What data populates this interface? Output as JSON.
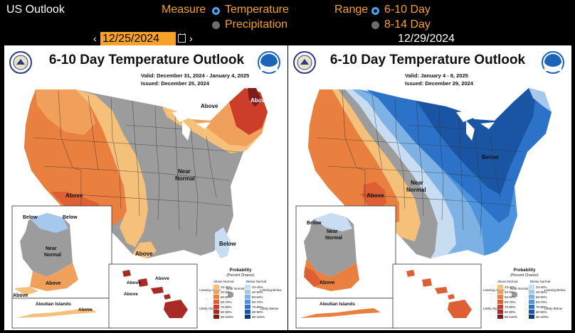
{
  "header": {
    "title": "US Outlook",
    "measure_label": "Measure",
    "range_label": "Range",
    "measure_options": [
      "Temperature",
      "Precipitation"
    ],
    "range_options": [
      "6-10 Day",
      "8-14 Day"
    ],
    "selected_measure": "Temperature",
    "selected_range": "6-10 Day",
    "date_input": "12/25/2024",
    "date_right": "12/29/2024",
    "accent_color": "#f7a12a",
    "radio_selected_color": "#4aa3f0"
  },
  "left_map": {
    "title": "6-10 Day Temperature Outlook",
    "valid": "Valid:  December 31, 2024 - January 4, 2025",
    "issued": "Issued:  December 25, 2024",
    "labels": [
      "Above",
      "Above",
      "Above",
      "Near",
      "Normal",
      "Above",
      "Below",
      "Below",
      "Below",
      "Near",
      "Normal",
      "Above",
      "Above",
      "Aleutian Islands",
      "Above",
      "Above",
      "Above",
      "Above"
    ]
  },
  "right_map": {
    "title": "6-10 Day Temperature Outlook",
    "valid": "Valid:  January 4 - 8, 2025",
    "issued": "Issued:  December 29, 2024",
    "labels": [
      "Below",
      "Near",
      "Normal",
      "Above",
      "Below",
      "Near",
      "Normal",
      "Above",
      "Aleutian Islands"
    ]
  },
  "legend": {
    "title": "Probability",
    "subtitle": "(Percent Chance)",
    "above_normal": "Above Normal",
    "below_normal": "Below Normal",
    "near_normal": "Near Normal",
    "leaning_above": "Leaning Above",
    "likely_above": "Likely Above",
    "leaning_below": "Leaning Below",
    "likely_below": "Likely Below",
    "above_bins": [
      "33-40%",
      "40-50%",
      "50-60%",
      "60-70%",
      "70-80%",
      "80-90%",
      "90-100%"
    ],
    "below_bins": [
      "33-40%",
      "40-50%",
      "50-60%",
      "60-70%",
      "70-80%",
      "80-90%",
      "90-100%"
    ],
    "above_colors": [
      "#f4c07a",
      "#f0a05a",
      "#e9803f",
      "#dd5f33",
      "#cc3d2a",
      "#a82a24",
      "#7d1c1c"
    ],
    "below_colors": [
      "#c8dcf2",
      "#a6c8ec",
      "#7eb1e4",
      "#4d94dc",
      "#2b72c8",
      "#1a55a4",
      "#0e3a7a"
    ],
    "near_color": "#9a9a9a"
  }
}
